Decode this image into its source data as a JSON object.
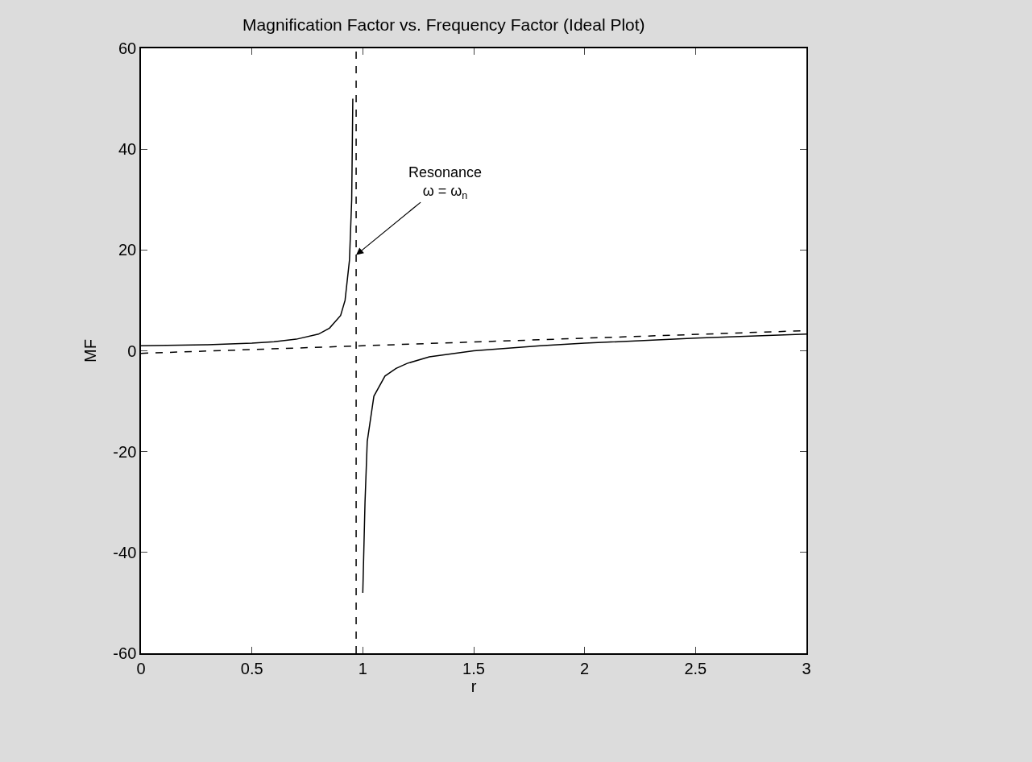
{
  "chart_data": {
    "type": "line",
    "title": "Magnification Factor vs. Frequency Factor (Ideal Plot)",
    "xlabel": "r",
    "ylabel": "MF",
    "xlim": [
      0,
      3
    ],
    "ylim": [
      -60,
      60
    ],
    "xticks": [
      0,
      0.5,
      1,
      1.5,
      2,
      2.5,
      3
    ],
    "yticks": [
      -60,
      -40,
      -20,
      0,
      20,
      40,
      60
    ],
    "marker": "none",
    "series": [
      {
        "color": "#000000",
        "line_style": "solid",
        "x": [
          0,
          0.3,
          0.5,
          0.6,
          0.7,
          0.8,
          0.85,
          0.9,
          0.92,
          0.94,
          0.95,
          0.955,
          0.97,
          1.0,
          1.01,
          1.02,
          1.05,
          1.1,
          1.15,
          1.2,
          1.3,
          1.5,
          1.8,
          2,
          2.5,
          3
        ],
        "values": [
          1,
          1.2,
          1.5,
          1.8,
          2.3,
          3.3,
          4.5,
          7,
          10,
          18,
          30,
          50,
          null,
          -48,
          -30,
          -18,
          -9,
          -5,
          -3.5,
          -2.5,
          -1.2,
          0,
          1,
          1.5,
          2.5,
          3.3
        ]
      },
      {
        "color": "#000000",
        "line_style": "dashed",
        "x": [
          0,
          3
        ],
        "values": [
          -0.5,
          4
        ]
      }
    ],
    "ref_lines": [
      {
        "axis": "x",
        "value": 0.97,
        "color": "#000000",
        "line_style": "dashed"
      }
    ],
    "annotations": [
      {
        "text": "Resonance\nω = ω$_{n}$",
        "x": 0.97,
        "y": 19
      }
    ]
  }
}
